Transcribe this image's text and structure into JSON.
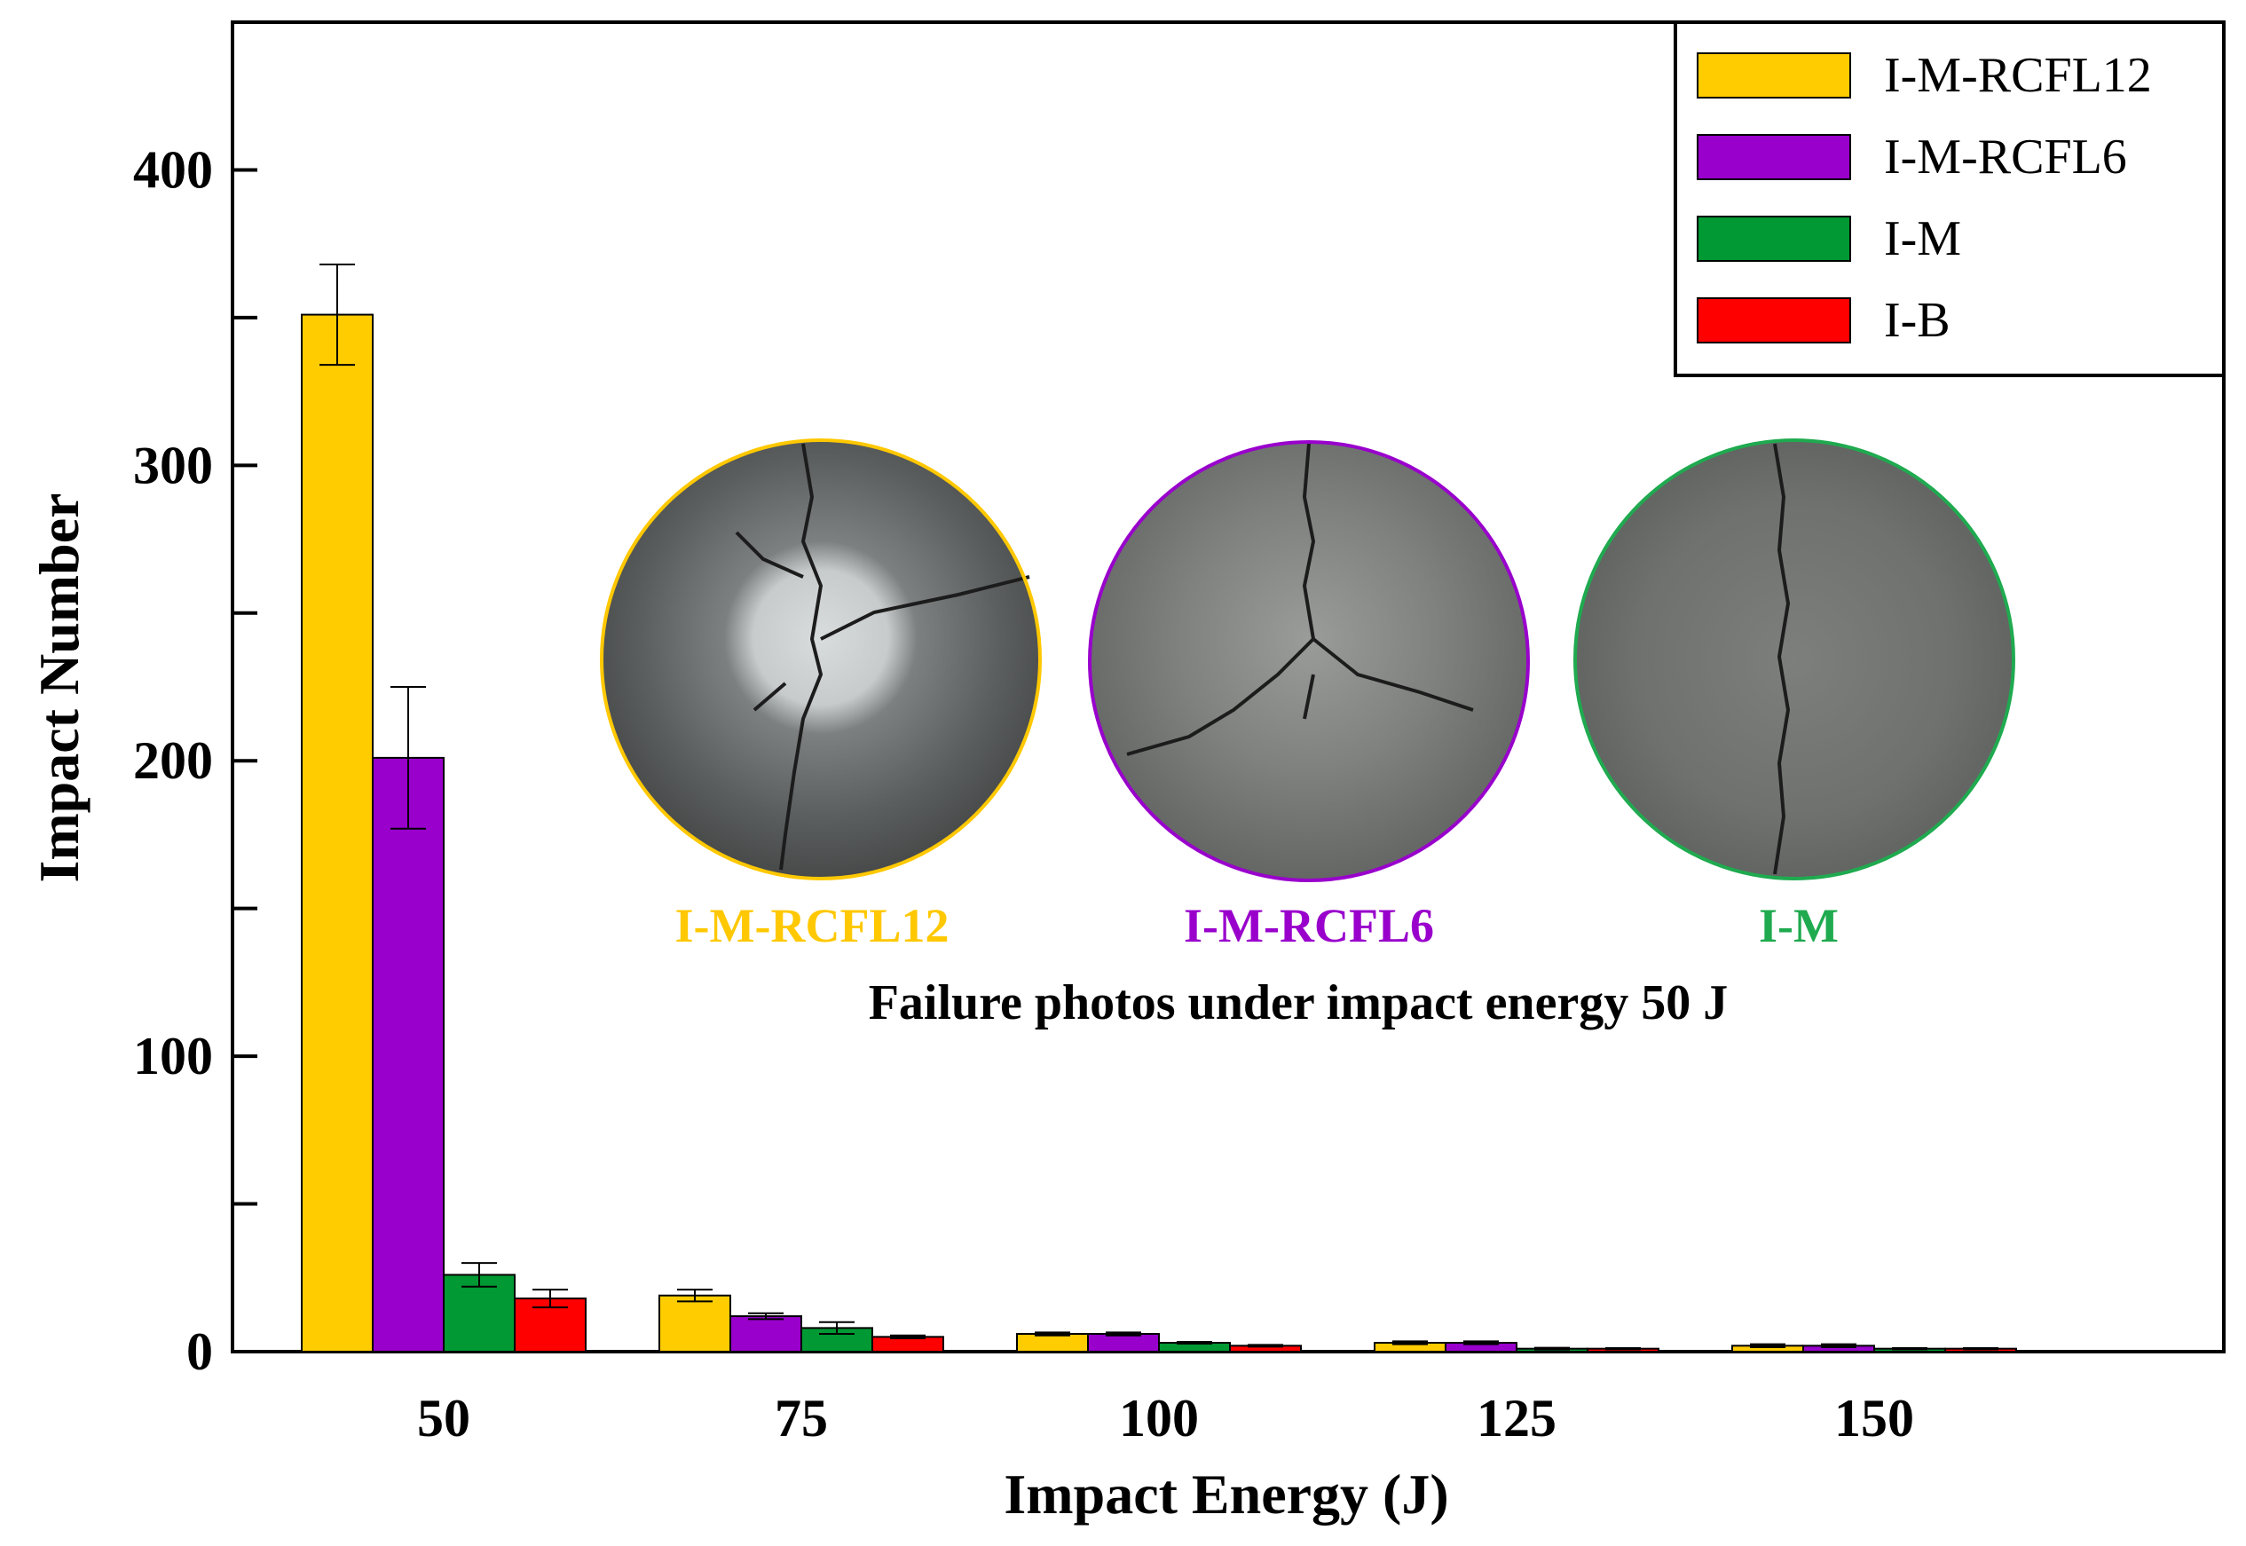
{
  "chart_data": {
    "type": "bar",
    "xlabel": "Impact Energy (J)",
    "ylabel": "Impact Number",
    "ylim": [
      0,
      450
    ],
    "yticks": [
      0,
      100,
      200,
      300,
      400
    ],
    "categories": [
      "50",
      "75",
      "100",
      "125",
      "150"
    ],
    "series": [
      {
        "name": "I-M-RCFL12",
        "color": "#FFCC00",
        "values": [
          351,
          19,
          6,
          3,
          2
        ],
        "errors": [
          17,
          2,
          0.5,
          0.5,
          0.5
        ]
      },
      {
        "name": "I-M-RCFL6",
        "color": "#9900CC",
        "values": [
          201,
          12,
          6,
          3,
          2
        ],
        "errors": [
          24,
          1,
          0.5,
          0.5,
          0.5
        ]
      },
      {
        "name": "I-M",
        "color": "#009933",
        "values": [
          26,
          8,
          3,
          1,
          1
        ],
        "errors": [
          4,
          2,
          0.3,
          0.3,
          0.2
        ]
      },
      {
        "name": "I-B",
        "color": "#FF0000",
        "values": [
          18,
          5,
          2,
          1,
          1
        ],
        "errors": [
          3,
          0.5,
          0.3,
          0.2,
          0.2
        ]
      }
    ],
    "legend_position": "top-right",
    "inset": {
      "photos": [
        {
          "label": "I-M-RCFL12",
          "color": "#FFC800"
        },
        {
          "label": "I-M-RCFL6",
          "color": "#9900CC"
        },
        {
          "label": "I-M",
          "color": "#1FAA4F"
        }
      ],
      "caption": "Failure photos under impact energy 50 J"
    }
  }
}
